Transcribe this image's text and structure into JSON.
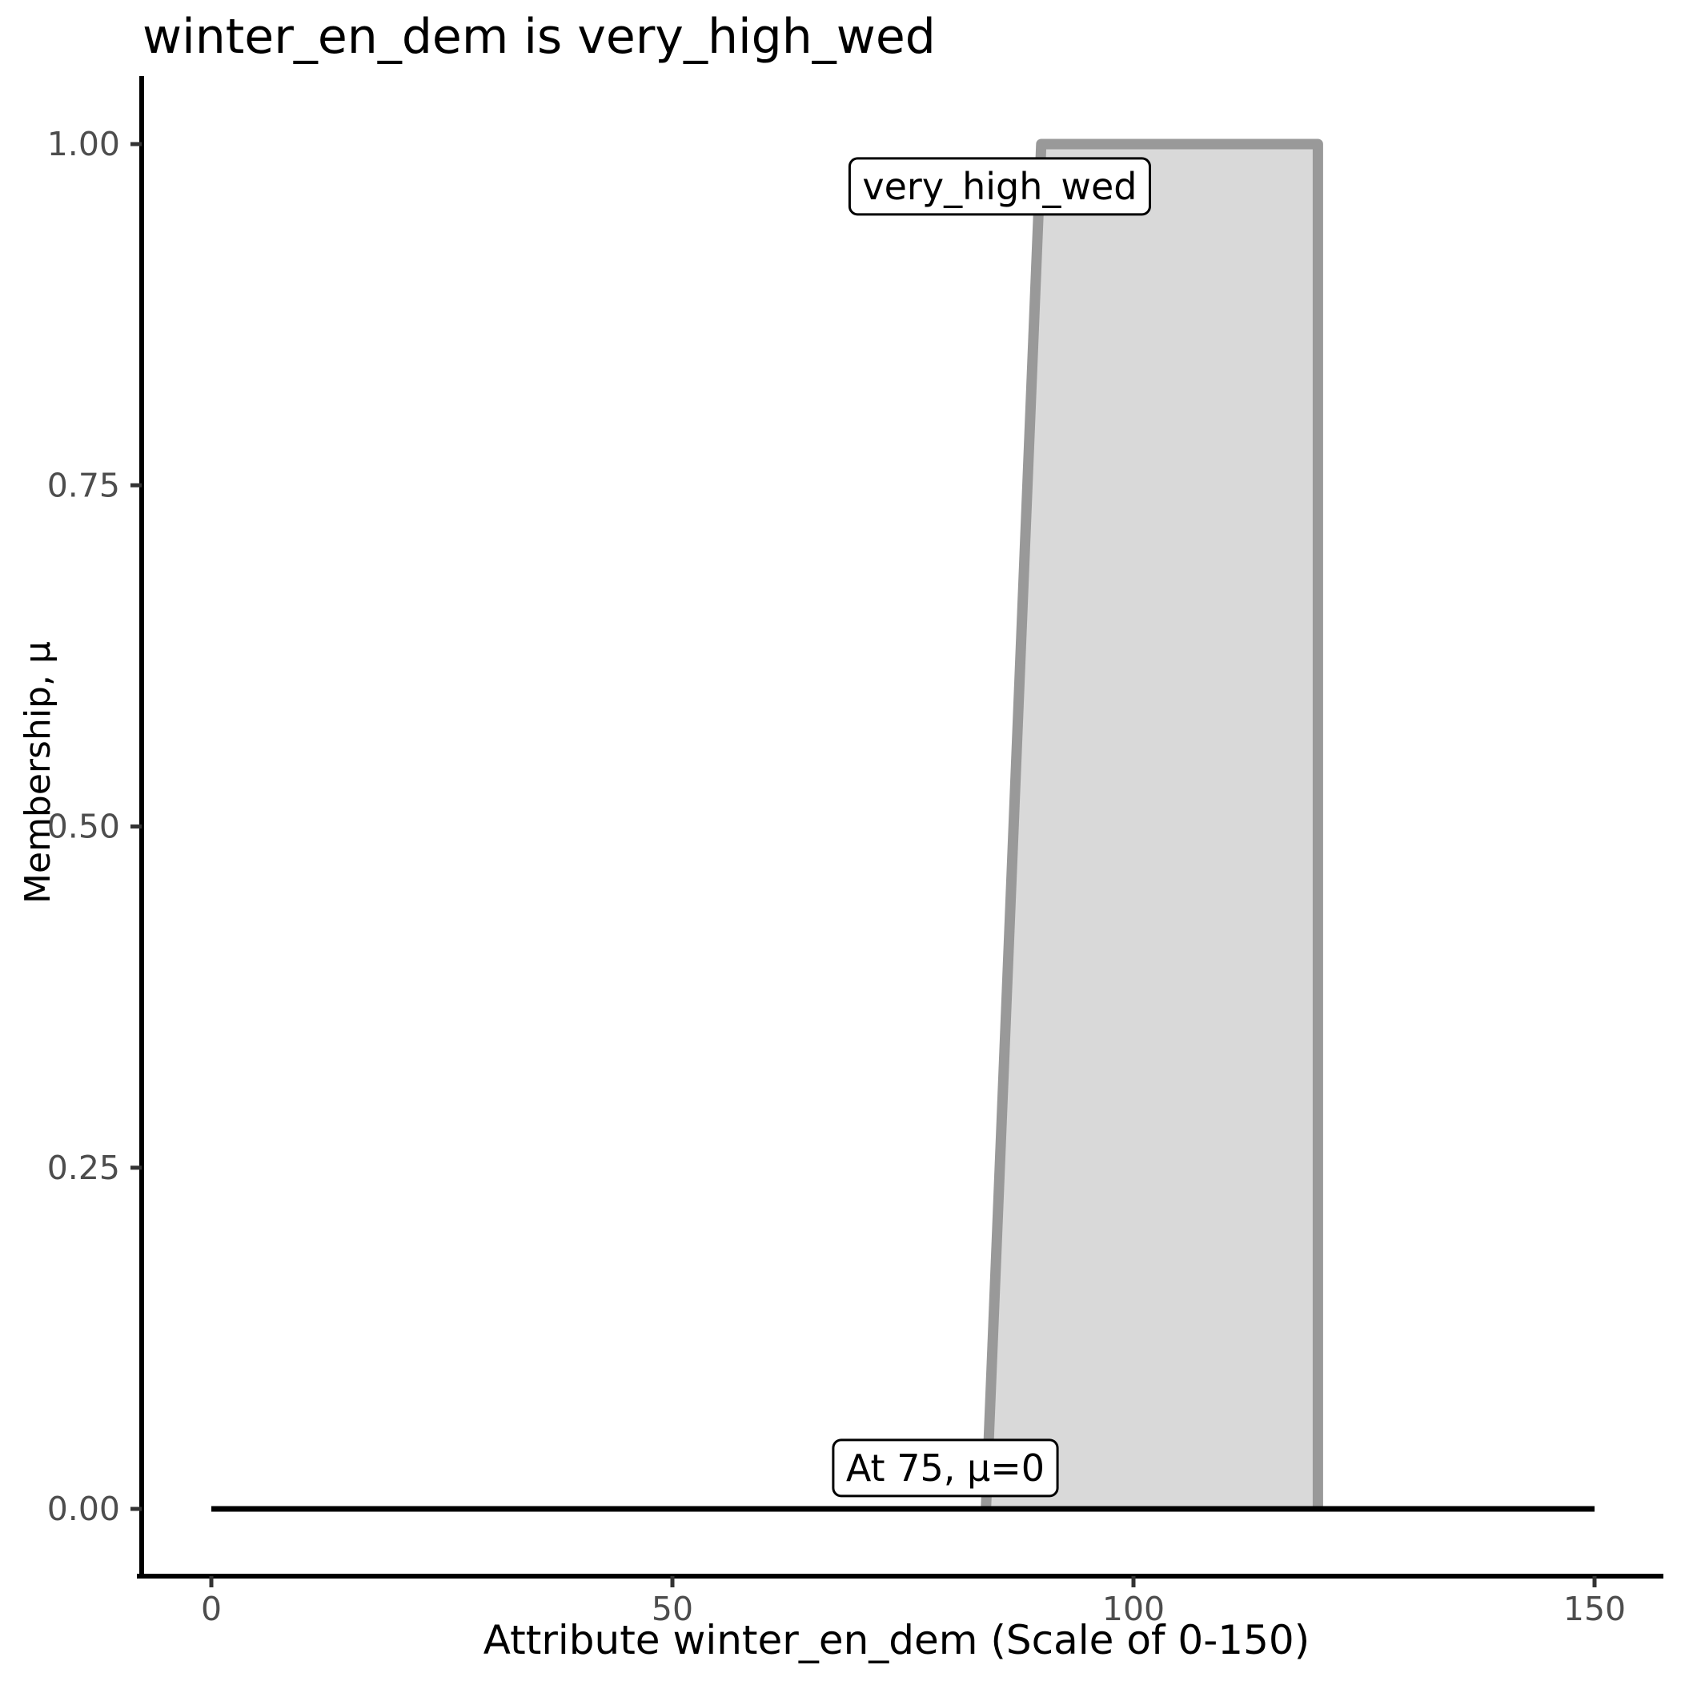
{
  "figure": {
    "kind": "fuzzy membership function plot",
    "background": "#ffffff"
  },
  "colors": {
    "fill": "#d9d9d9",
    "outline": "#999999",
    "baseline": "#000000",
    "axis": "#000000",
    "tick": "#333333",
    "tick_label": "#4d4d4d",
    "text": "#000000",
    "annotation_bg": "#ffffff",
    "annotation_border": "#000000"
  },
  "chart_data": {
    "type": "area",
    "title": "winter_en_dem is very_high_wed",
    "xlabel": "Attribute winter_en_dem (Scale of 0-150)",
    "ylabel": "Membership, μ",
    "xlim": [
      0,
      150
    ],
    "ylim": [
      0,
      1
    ],
    "grid": false,
    "legend": false,
    "x_ticks": [
      {
        "value": 0,
        "label": "0"
      },
      {
        "value": 50,
        "label": "50"
      },
      {
        "value": 100,
        "label": "100"
      },
      {
        "value": 150,
        "label": "150"
      }
    ],
    "y_ticks": [
      {
        "value": 0,
        "label": "0.00"
      },
      {
        "value": 0.25,
        "label": "0.25"
      },
      {
        "value": 0.5,
        "label": "0.50"
      },
      {
        "value": 0.75,
        "label": "0.75"
      },
      {
        "value": 1,
        "label": "1.00"
      }
    ],
    "series": [
      {
        "name": "very_high_wed",
        "shape": "trapezoid membership function",
        "vertices": [
          [
            84,
            0
          ],
          [
            90,
            1
          ],
          [
            120,
            1
          ],
          [
            120,
            0
          ]
        ],
        "close_bottom": false
      }
    ],
    "baseline": {
      "mu": 0,
      "x_start": 0,
      "x_end": 150
    },
    "annotations": [
      {
        "text": "very_high_wed",
        "x": 85.5,
        "mu": 0.969
      },
      {
        "text": "At 75, μ=0",
        "x": 79.6,
        "mu": 0.03
      }
    ]
  }
}
